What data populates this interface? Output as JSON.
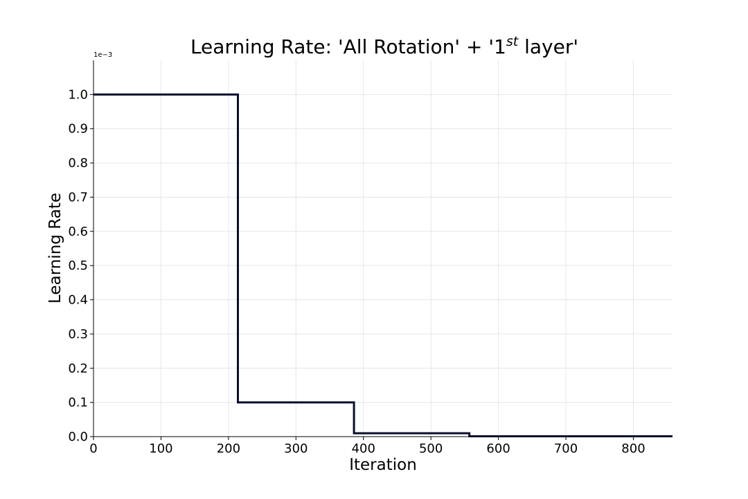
{
  "chart_data": {
    "type": "line",
    "title_main": "Learning Rate: 'All Rotation' + '1",
    "title_sup": "st",
    "title_end": " layer'",
    "xlabel": "Iteration",
    "ylabel": "Learning Rate",
    "y_offset_text": "1e−3",
    "xlim": [
      0,
      858
    ],
    "ylim": [
      0,
      1.1
    ],
    "x_ticks": [
      0,
      100,
      200,
      300,
      400,
      500,
      600,
      700,
      800
    ],
    "y_ticks": [
      0.0,
      0.1,
      0.2,
      0.3,
      0.4,
      0.5,
      0.6,
      0.7,
      0.8,
      0.9,
      1.0
    ],
    "y_tick_labels": [
      "0.0",
      "0.1",
      "0.2",
      "0.3",
      "0.4",
      "0.5",
      "0.6",
      "0.7",
      "0.8",
      "0.9",
      "1.0"
    ],
    "grid": true,
    "series": [
      {
        "color": "#0a0f2e",
        "x": [
          0,
          214,
          214,
          386,
          386,
          557,
          557,
          858
        ],
        "y": [
          1.0,
          1.0,
          0.1,
          0.1,
          0.01,
          0.01,
          0.001,
          0.001
        ]
      }
    ]
  }
}
